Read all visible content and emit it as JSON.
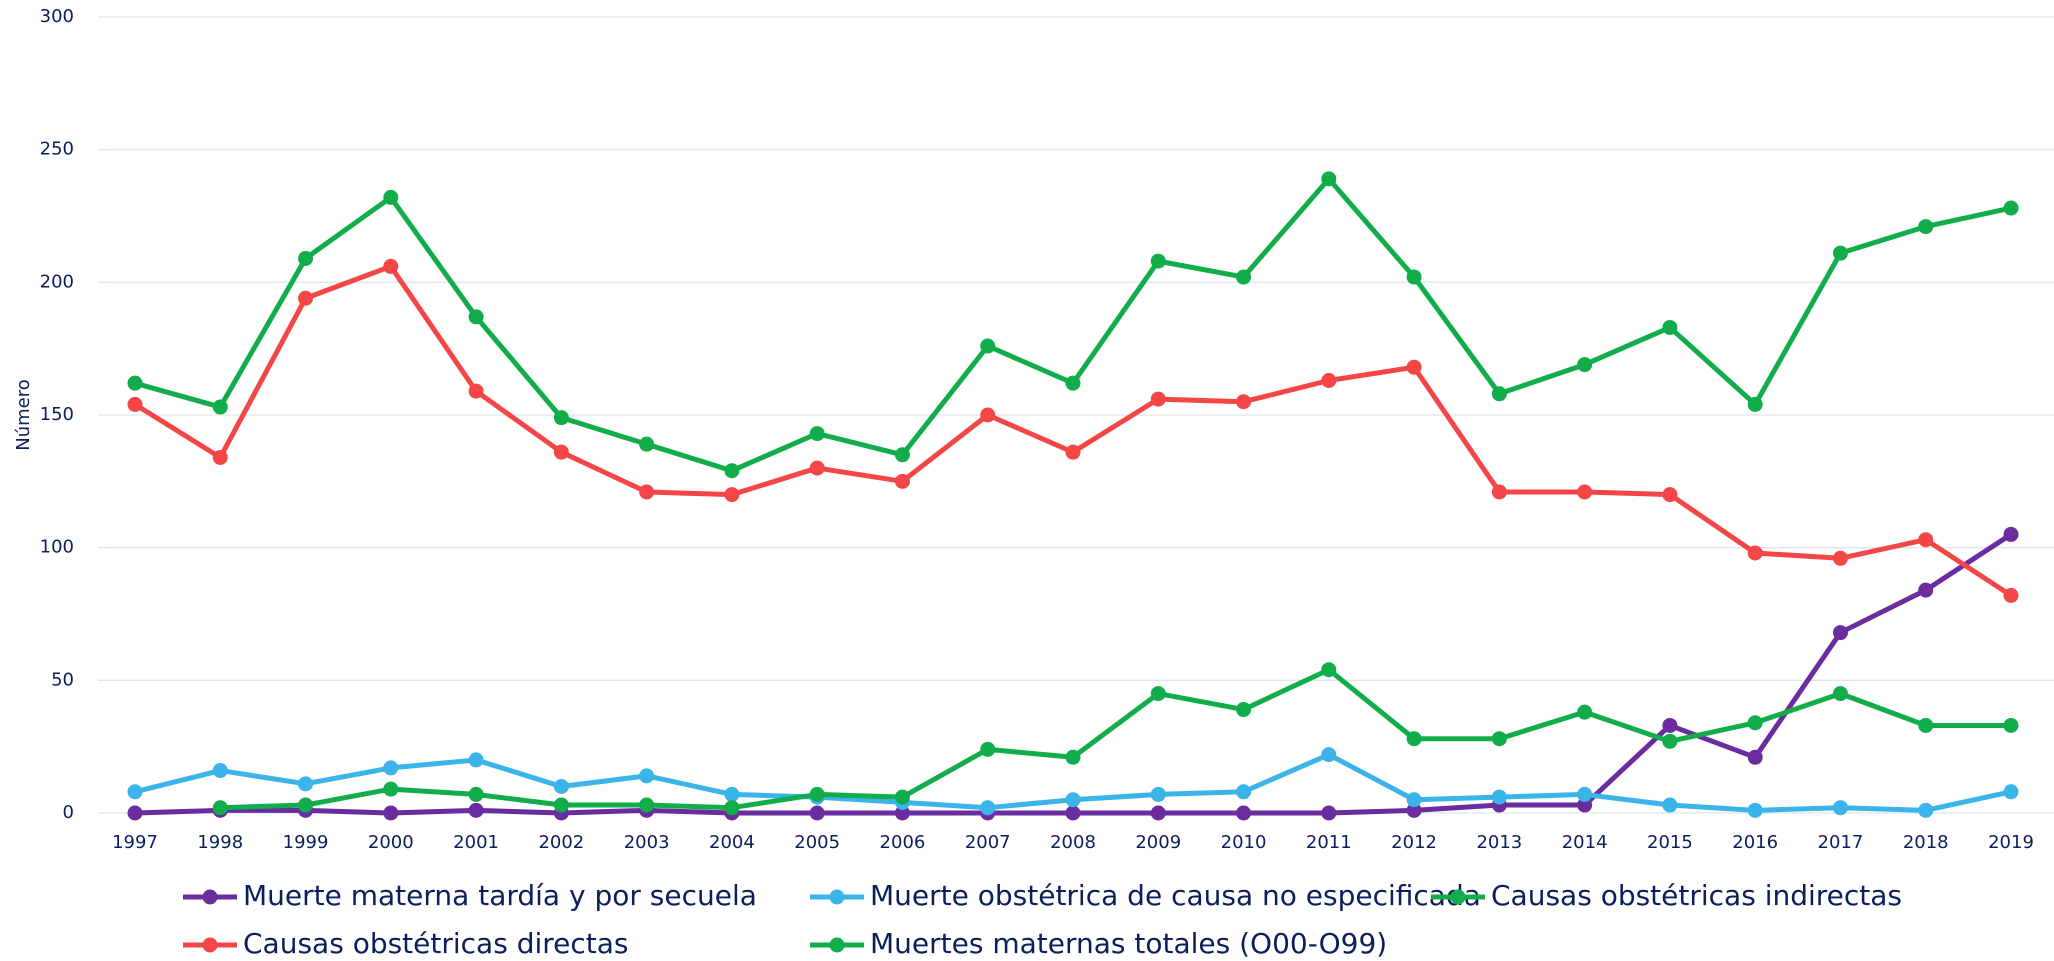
{
  "chart_data": {
    "type": "line",
    "ylabel": "Número",
    "categories": [
      "1997",
      "1998",
      "1999",
      "2000",
      "2001",
      "2002",
      "2003",
      "2004",
      "2005",
      "2006",
      "2007",
      "2008",
      "2009",
      "2010",
      "2011",
      "2012",
      "2013",
      "2014",
      "2015",
      "2016",
      "2017",
      "2018",
      "2019"
    ],
    "ylim": [
      0,
      300
    ],
    "yticks": [
      0,
      50,
      100,
      150,
      200,
      250,
      300
    ],
    "grid": true,
    "series": [
      {
        "name": "Muerte materna tardía y por secuela",
        "color": "#6a2c9e",
        "values": [
          0,
          1,
          1,
          0,
          1,
          0,
          1,
          0,
          0,
          0,
          0,
          0,
          0,
          0,
          0,
          1,
          3,
          3,
          33,
          21,
          68,
          84,
          105
        ]
      },
      {
        "name": "Muerte obstétrica de causa no especificada",
        "color": "#3bb4ea",
        "values": [
          8,
          16,
          11,
          17,
          20,
          10,
          14,
          7,
          6,
          4,
          2,
          5,
          7,
          8,
          22,
          5,
          6,
          7,
          3,
          1,
          2,
          1,
          8
        ]
      },
      {
        "name": "Causas obstétricas indirectas",
        "color": "#12ad4b",
        "values": [
          null,
          2,
          3,
          9,
          7,
          3,
          3,
          2,
          7,
          6,
          24,
          21,
          45,
          39,
          54,
          28,
          28,
          38,
          27,
          34,
          45,
          33,
          33
        ]
      },
      {
        "name": "Causas obstétricas directas",
        "color": "#f44646",
        "values": [
          154,
          134,
          194,
          206,
          159,
          136,
          121,
          120,
          130,
          125,
          150,
          136,
          156,
          155,
          163,
          168,
          121,
          121,
          120,
          98,
          96,
          103,
          82
        ]
      },
      {
        "name": "Muertes maternas totales (O00-O99)",
        "color": "#12ad4b",
        "values": [
          162,
          153,
          209,
          232,
          187,
          149,
          139,
          129,
          143,
          135,
          176,
          162,
          208,
          202,
          239,
          202,
          158,
          169,
          183,
          154,
          211,
          221,
          228
        ]
      }
    ]
  }
}
